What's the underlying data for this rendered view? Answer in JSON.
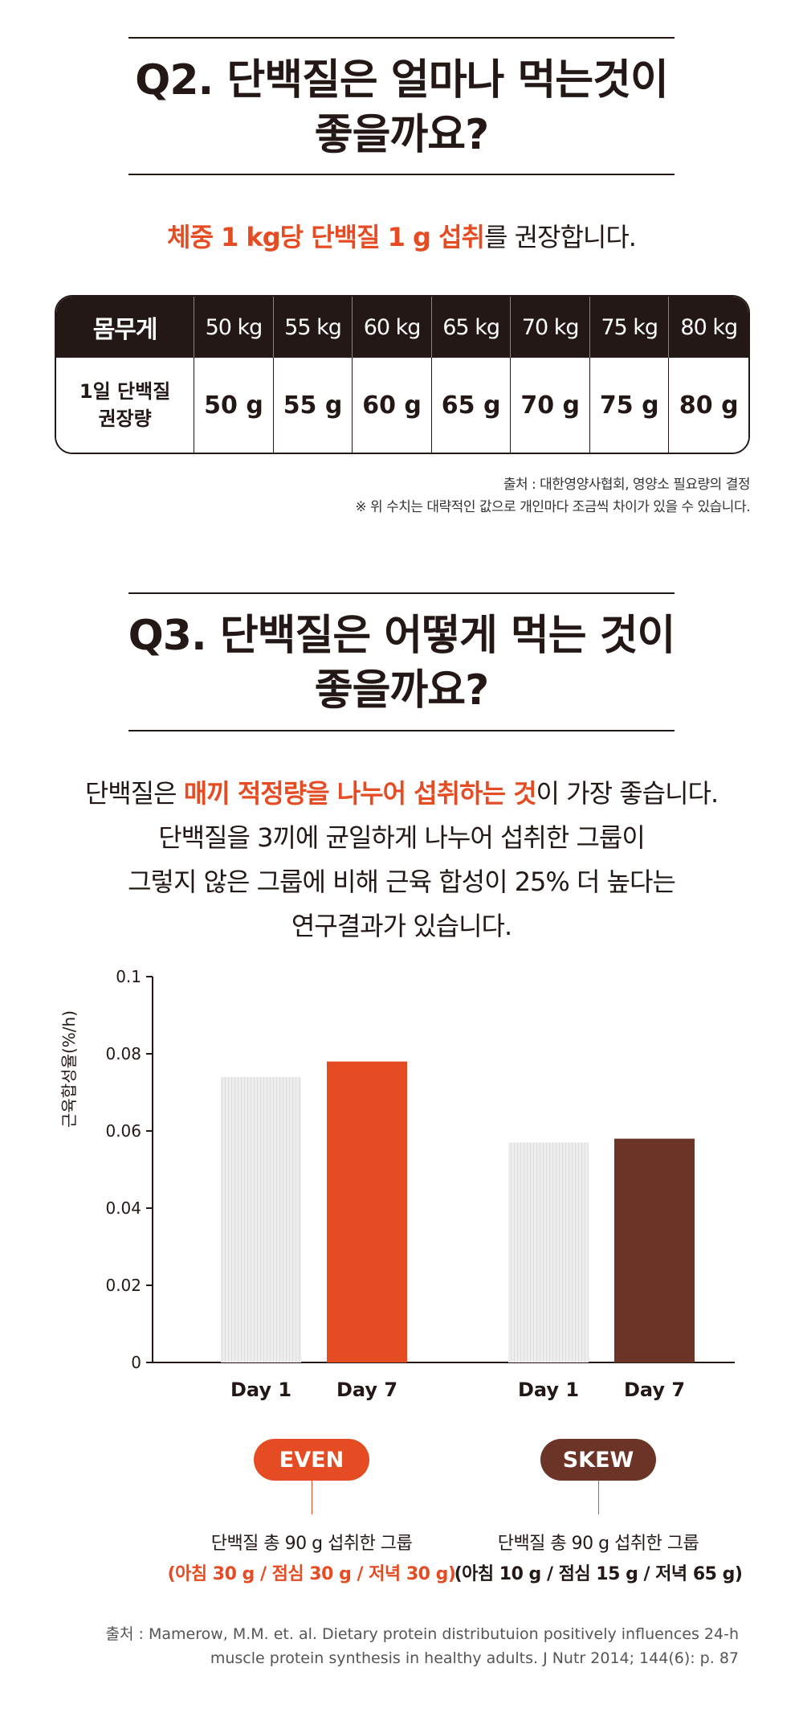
{
  "q2": {
    "title_line1": "Q2. 단백질은 얼마나 먹는것이",
    "title_line2": "좋을까요?",
    "lead_highlight": "체중 1 kg당 단백질 1 g 섭취",
    "lead_rest": "를 권장합니다."
  },
  "table": {
    "row1_label": "몸무게",
    "weights": [
      "50 kg",
      "55 kg",
      "60 kg",
      "65 kg",
      "70 kg",
      "75 kg",
      "80 kg"
    ],
    "row2_label_line1": "1일 단백질",
    "row2_label_line2": "권장량",
    "amounts": [
      "50 g",
      "55 g",
      "60 g",
      "65 g",
      "70 g",
      "75 g",
      "80 g"
    ],
    "source": "출처 : 대한영양사협회, 영양소 필요량의 결정",
    "disclaimer": "※ 위 수치는 대략적인 값으로 개인마다 조금씩 차이가 있을 수 있습니다."
  },
  "q3": {
    "title_line1": "Q3. 단백질은 어떻게 먹는 것이",
    "title_line2": "좋을까요?",
    "lead1_pre": "단백질은 ",
    "lead1_highlight": "매끼 적정량을 나누어 섭취하는 것",
    "lead1_post": "이 가장 좋습니다.",
    "lead2": "단백질을 3끼에 균일하게 나누어 섭취한 그룹이",
    "lead3": "그렇지 않은 그룹에 비해 근육 합성이 25% 더 높다는",
    "lead4": "연구결과가 있습니다."
  },
  "chart_data": {
    "type": "bar",
    "ylabel": "근육합성율(%/h)",
    "ylim": [
      0,
      0.1
    ],
    "yticks": [
      "0",
      "0.02",
      "0.04",
      "0.06",
      "0.08",
      "0.1"
    ],
    "groups": [
      "EVEN",
      "SKEW"
    ],
    "categories": [
      "Day 1",
      "Day 7",
      "Day 1",
      "Day 7"
    ],
    "values": [
      0.074,
      0.078,
      0.057,
      0.058
    ],
    "bar_colors": [
      "#e8e8e8",
      "#e64c23",
      "#e8e8e8",
      "#6b3426"
    ],
    "grid": false
  },
  "groups": {
    "even_label": "EVEN",
    "even_color": "#e64c23",
    "even_desc": "단백질 총 90 g 섭취한 그룹",
    "even_detail": "(아침 30 g / 점심 30 g / 저녁 30 g)",
    "skew_label": "SKEW",
    "skew_color": "#6b3426",
    "skew_desc": "단백질 총 90 g 섭취한 그룹",
    "skew_detail": "(아침 10 g / 점심 15 g / 저녁 65 g)"
  },
  "source": {
    "line1": "출처 : Mamerow, M.M. et. al. Dietary protein distributuion positively influences 24-h",
    "line2": "muscle protein synthesis in healthy adults. J Nutr 2014; 144(6): p. 87"
  }
}
